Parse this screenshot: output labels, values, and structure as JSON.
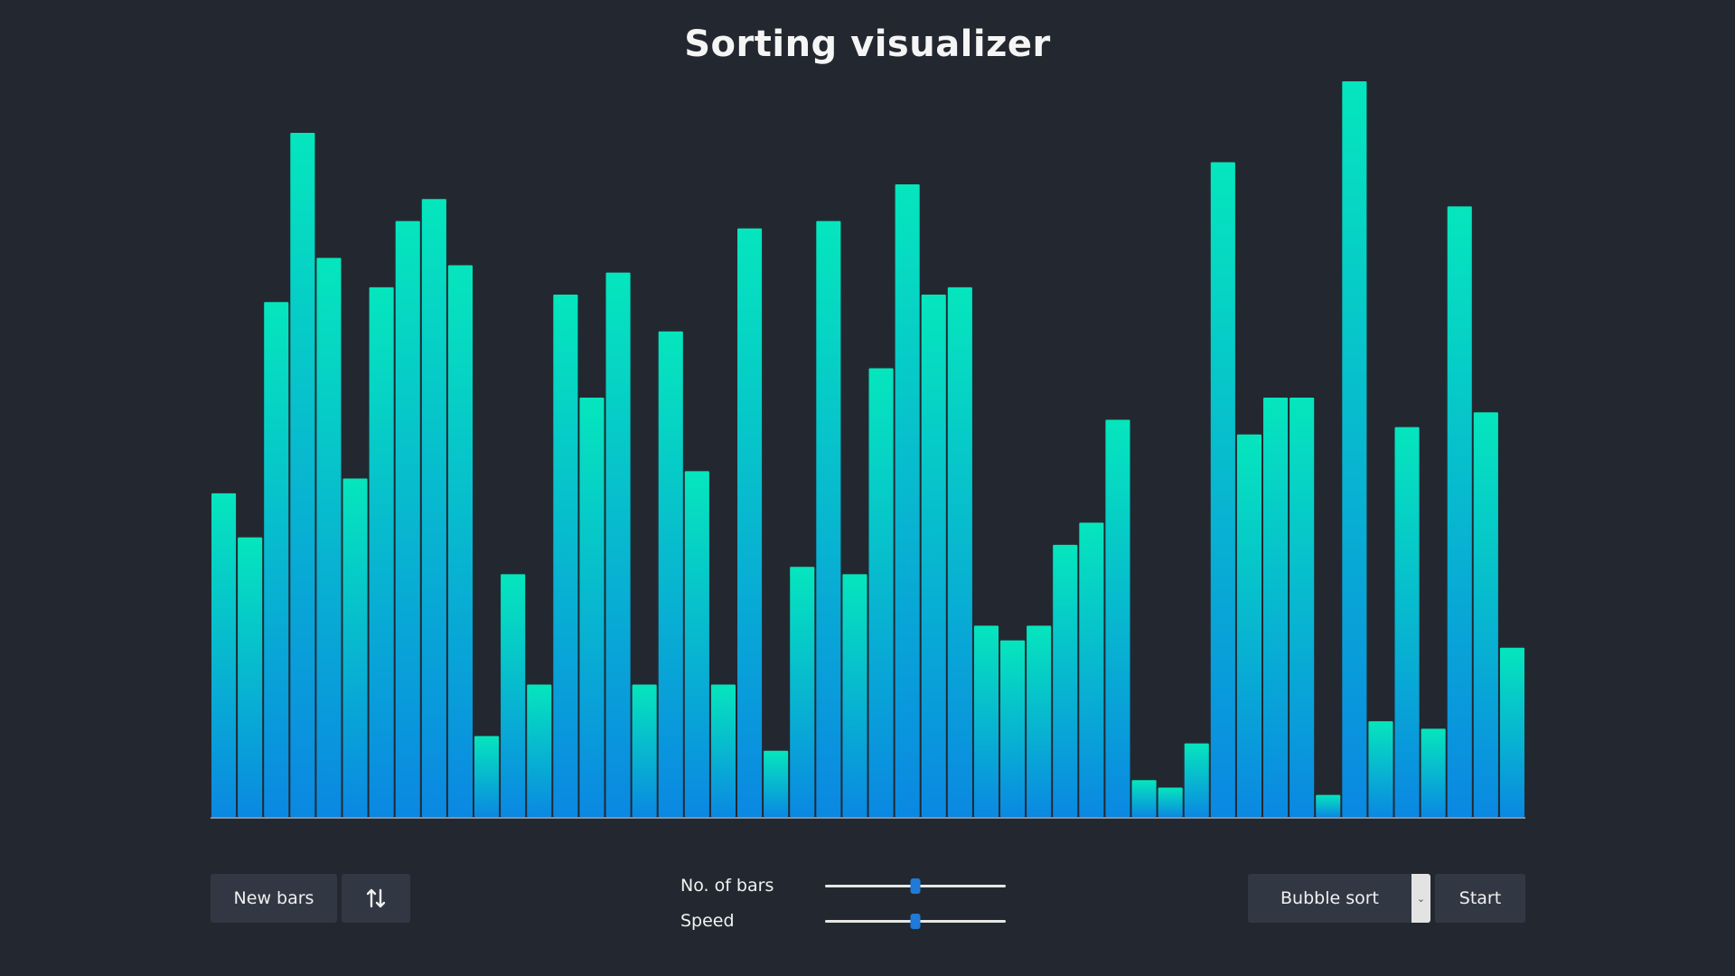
{
  "header": {
    "title": "Sorting visualizer"
  },
  "chart_data": {
    "type": "bar",
    "values": [
      44,
      38,
      70,
      93,
      76,
      46,
      72,
      81,
      84,
      75,
      11,
      33,
      18,
      71,
      57,
      74,
      18,
      66,
      47,
      18,
      80,
      9,
      34,
      81,
      33,
      61,
      86,
      71,
      72,
      26,
      24,
      26,
      37,
      40,
      54,
      5,
      4,
      10,
      89,
      52,
      57,
      57,
      3,
      100,
      13,
      53,
      12,
      83,
      55,
      23
    ],
    "ylim": [
      0,
      100
    ],
    "colors": {
      "top": "#05e6bd",
      "bottom": "#0a88e2",
      "baseline": "#8a8f99"
    }
  },
  "controls": {
    "new_bars_label": "New bars",
    "order_icon": "sort-arrows-icon",
    "bars_slider": {
      "label": "No. of bars",
      "value": 0.5
    },
    "speed_slider": {
      "label": "Speed",
      "value": 0.5
    },
    "algorithm": {
      "selected": "Bubble sort"
    },
    "start_label": "Start"
  }
}
